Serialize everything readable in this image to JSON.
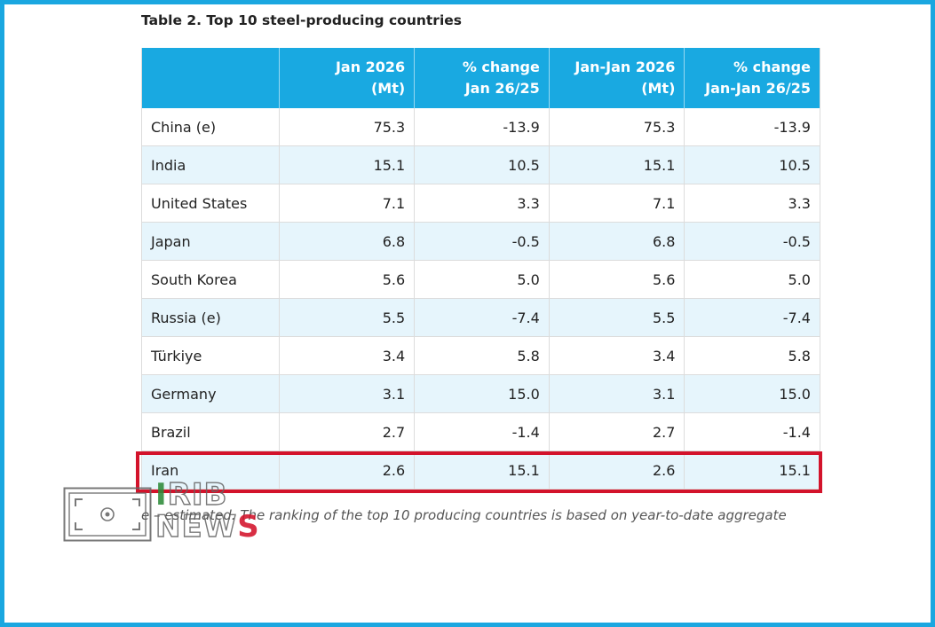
{
  "title": "Table 2. Top 10 steel-producing countries",
  "columns": [
    "",
    "Jan 2026 (Mt)",
    "% change Jan 26/25",
    "Jan-Jan 2026 (Mt)",
    "% change Jan-Jan 26/25"
  ],
  "header": {
    "c1_line1": "Jan 2026",
    "c1_line2": "(Mt)",
    "c2_line1": "% change",
    "c2_line2": "Jan 26/25",
    "c3_line1": "Jan-Jan 2026",
    "c3_line2": "(Mt)",
    "c4_line1": "% change",
    "c4_line2": "Jan-Jan 26/25"
  },
  "rows": [
    [
      "China (e)",
      "75.3",
      "-13.9",
      "75.3",
      "-13.9"
    ],
    [
      "India",
      "15.1",
      "10.5",
      "15.1",
      "10.5"
    ],
    [
      "United States",
      "7.1",
      "3.3",
      "7.1",
      "3.3"
    ],
    [
      "Japan",
      "6.8",
      "-0.5",
      "6.8",
      "-0.5"
    ],
    [
      "South Korea",
      "5.6",
      "5.0",
      "5.6",
      "5.0"
    ],
    [
      "Russia (e)",
      "5.5",
      "-7.4",
      "5.5",
      "-7.4"
    ],
    [
      "Türkiye",
      "3.4",
      "5.8",
      "3.4",
      "5.8"
    ],
    [
      "Germany",
      "3.1",
      "15.0",
      "3.1",
      "15.0"
    ],
    [
      "Brazil",
      "2.7",
      "-1.4",
      "2.7",
      "-1.4"
    ],
    [
      "Iran",
      "2.6",
      "15.1",
      "2.6",
      "15.1"
    ]
  ],
  "highlighted_row": "Iran",
  "note": "e – estimated. The ranking of the top 10 producing countries is based on year-to-date aggregate",
  "watermark": {
    "line1": "IRIB",
    "line2": "NEWS"
  },
  "colors": {
    "header_bg": "#19a9e1",
    "stripe_bg": "#e6f5fc",
    "highlight_border": "#d3132b",
    "frame_border": "#1aa7e0"
  }
}
